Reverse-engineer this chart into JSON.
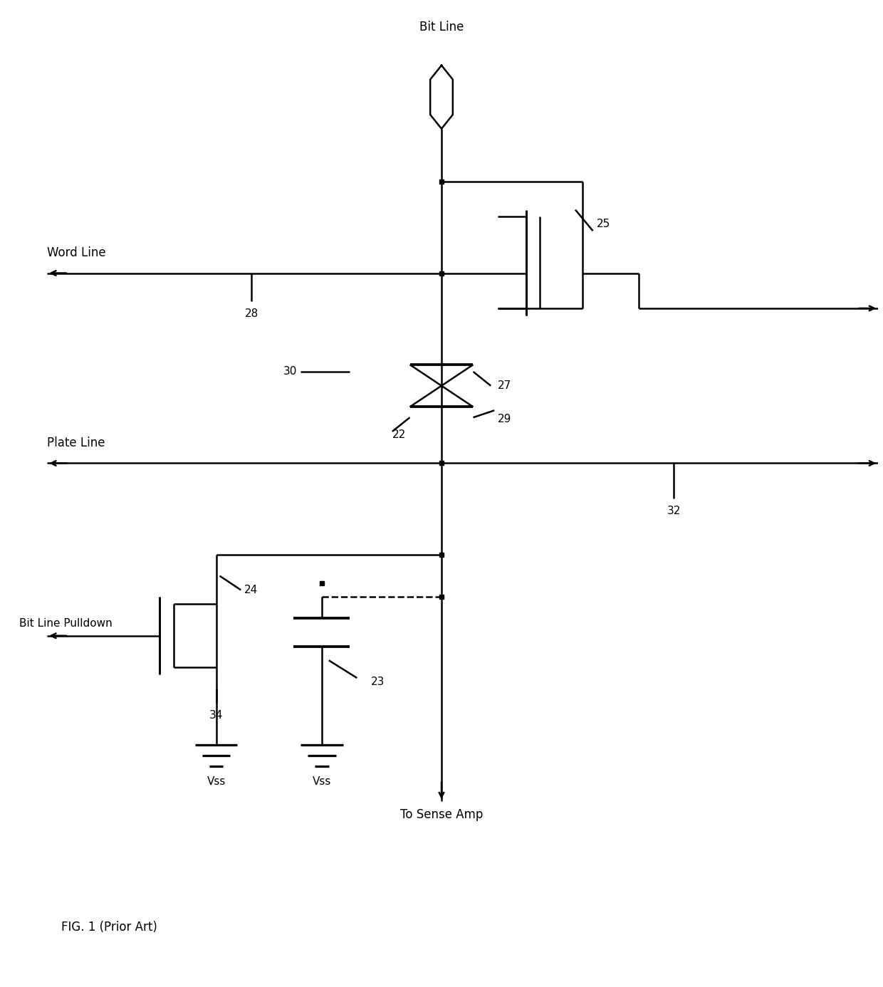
{
  "bg_color": "#ffffff",
  "line_color": "#000000",
  "fig_width": 12.4,
  "fig_height": 13.86,
  "title": "FIG. 1 (Prior Art)",
  "labels": {
    "bit_line": "Bit Line",
    "word_line": "Word Line",
    "plate_line": "Plate Line",
    "bit_line_pulldown": "Bit Line Pulldown",
    "to_sense_amp": "To Sense Amp",
    "vss1": "Vss",
    "vss2": "Vss",
    "n22": "22",
    "n23": "23",
    "n24": "24",
    "n25": "25",
    "n27": "27",
    "n28": "28",
    "n29": "29",
    "n30": "30",
    "n32": "32",
    "n34": "34"
  }
}
